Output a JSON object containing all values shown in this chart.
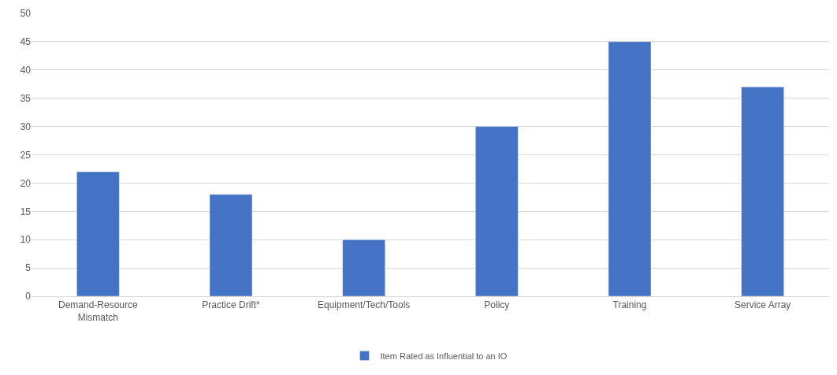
{
  "chart_data": {
    "type": "bar",
    "categories": [
      "Demand-Resource Mismatch",
      "Practice Drift*",
      "Equipment/Tech/Tools",
      "Policy",
      "Training",
      "Service Array"
    ],
    "series": [
      {
        "name": "Item Rated as Influential to an IO",
        "color": "#4472c4",
        "values": [
          22,
          18,
          10,
          30,
          45,
          37
        ]
      }
    ],
    "ylim": [
      0,
      50
    ],
    "yticks": [
      0,
      5,
      10,
      15,
      20,
      25,
      30,
      35,
      40,
      45,
      50
    ],
    "grid": "y",
    "legend": "bottom"
  }
}
